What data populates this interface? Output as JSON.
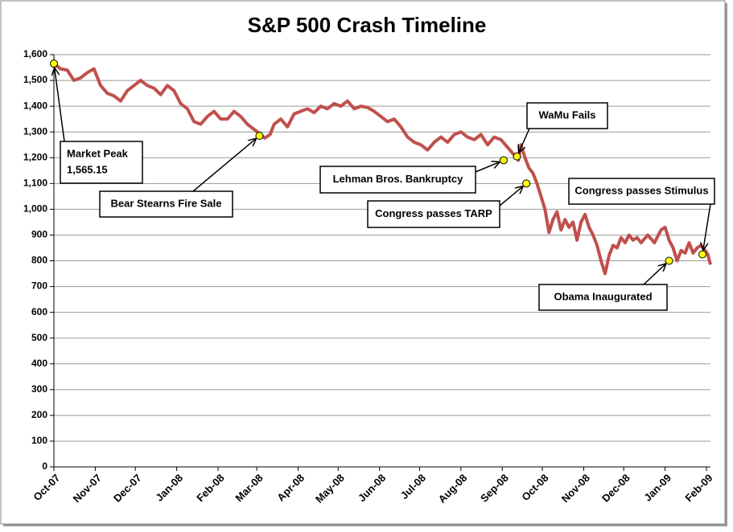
{
  "chart_data": {
    "type": "line",
    "title": "S&P 500 Crash Timeline",
    "ylim": [
      0,
      1600
    ],
    "yticks": [
      0,
      100,
      200,
      300,
      400,
      500,
      600,
      700,
      800,
      900,
      {
        "value": 1000,
        "label": "1,000"
      },
      {
        "value": 1100,
        "label": "1,100"
      },
      {
        "value": 1200,
        "label": "1,200"
      },
      {
        "value": 1300,
        "label": "1,300"
      },
      {
        "value": 1400,
        "label": "1,400"
      },
      {
        "value": 1500,
        "label": "1,500"
      },
      {
        "value": 1600,
        "label": "1,600"
      }
    ],
    "xlim": [
      0,
      492
    ],
    "xticks": [
      {
        "value": 0,
        "label": "Oct-07"
      },
      {
        "value": 31,
        "label": "Nov-07"
      },
      {
        "value": 61,
        "label": "Dec-07"
      },
      {
        "value": 92,
        "label": "Jan-08"
      },
      {
        "value": 123,
        "label": "Feb-08"
      },
      {
        "value": 152,
        "label": "Mar-08"
      },
      {
        "value": 183,
        "label": "Apr-08"
      },
      {
        "value": 213,
        "label": "May-08"
      },
      {
        "value": 244,
        "label": "Jun-08"
      },
      {
        "value": 274,
        "label": "Jul-08"
      },
      {
        "value": 305,
        "label": "Aug-08"
      },
      {
        "value": 336,
        "label": "Sep-08"
      },
      {
        "value": 366,
        "label": "Oct-08"
      },
      {
        "value": 397,
        "label": "Nov-08"
      },
      {
        "value": 427,
        "label": "Dec-08"
      },
      {
        "value": 458,
        "label": "Jan-09"
      },
      {
        "value": 489,
        "label": "Feb-09"
      }
    ],
    "grid": true,
    "series": [
      {
        "color": "#c0504d",
        "x": [
          0,
          5,
          10,
          15,
          20,
          25,
          30,
          35,
          40,
          45,
          50,
          55,
          60,
          65,
          70,
          75,
          80,
          85,
          90,
          95,
          100,
          105,
          110,
          115,
          120,
          125,
          130,
          135,
          140,
          145,
          150,
          155,
          158,
          162,
          165,
          170,
          175,
          180,
          185,
          190,
          195,
          200,
          205,
          210,
          215,
          220,
          225,
          230,
          235,
          240,
          245,
          250,
          255,
          260,
          265,
          270,
          275,
          280,
          285,
          290,
          295,
          300,
          305,
          310,
          315,
          320,
          325,
          330,
          335,
          340,
          345,
          348,
          350,
          353,
          356,
          359,
          362,
          365,
          368,
          371,
          374,
          377,
          380,
          383,
          386,
          389,
          392,
          395,
          398,
          401,
          404,
          407,
          410,
          413,
          416,
          419,
          422,
          425,
          428,
          431,
          434,
          437,
          440,
          445,
          450,
          455,
          458,
          461,
          464,
          467,
          470,
          473,
          476,
          479,
          482,
          485,
          488,
          490,
          492
        ],
        "values": [
          1565,
          1545,
          1540,
          1500,
          1510,
          1530,
          1545,
          1480,
          1450,
          1440,
          1420,
          1460,
          1480,
          1500,
          1480,
          1470,
          1445,
          1480,
          1460,
          1410,
          1390,
          1340,
          1330,
          1360,
          1380,
          1350,
          1350,
          1380,
          1360,
          1330,
          1310,
          1290,
          1276,
          1290,
          1330,
          1350,
          1320,
          1370,
          1380,
          1390,
          1375,
          1400,
          1390,
          1410,
          1400,
          1420,
          1390,
          1400,
          1395,
          1380,
          1360,
          1340,
          1350,
          1320,
          1280,
          1260,
          1250,
          1230,
          1260,
          1280,
          1260,
          1290,
          1300,
          1280,
          1270,
          1290,
          1250,
          1280,
          1270,
          1240,
          1210,
          1190,
          1250,
          1200,
          1160,
          1140,
          1100,
          1050,
          1000,
          910,
          960,
          990,
          920,
          960,
          930,
          950,
          880,
          950,
          980,
          930,
          900,
          860,
          800,
          750,
          820,
          860,
          850,
          890,
          870,
          900,
          880,
          890,
          870,
          900,
          870,
          920,
          930,
          880,
          850,
          800,
          840,
          830,
          870,
          830,
          850,
          860,
          840,
          825,
          785
        ]
      }
    ],
    "annotations": [
      {
        "text": [
          "Market Peak",
          "1,565.15"
        ],
        "x": 0,
        "y": 1565.15
      },
      {
        "text": [
          "Bear Stearns Fire Sale"
        ],
        "x": 154,
        "y": 1285
      },
      {
        "text": [
          "Lehman Bros. Bankruptcy"
        ],
        "x": 337,
        "y": 1190
      },
      {
        "text": [
          "WaMu Fails"
        ],
        "x": 347,
        "y": 1205
      },
      {
        "text": [
          "Congress passes TARP"
        ],
        "x": 354,
        "y": 1100
      },
      {
        "text": [
          "Obama Inaugurated"
        ],
        "x": 461,
        "y": 800
      },
      {
        "text": [
          "Congress passes Stimulus"
        ],
        "x": 486,
        "y": 825
      }
    ]
  }
}
